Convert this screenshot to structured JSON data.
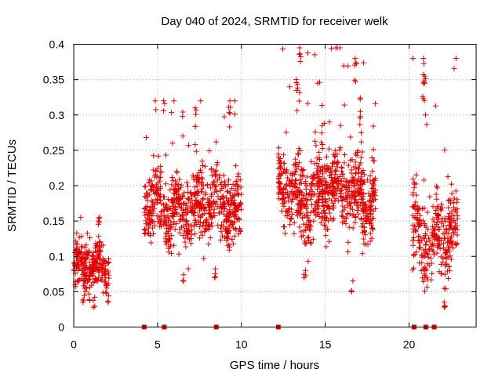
{
  "chart_data": {
    "type": "scatter",
    "title": "Day 040 of 2024, SRMTID for receiver welk",
    "xlabel": "GPS time / hours",
    "ylabel": "SRMTID / TECUs",
    "xlim": [
      0,
      24
    ],
    "ylim": [
      0,
      0.4
    ],
    "xticks": [
      0,
      5,
      10,
      15,
      20
    ],
    "xtick_labels": [
      "0",
      "5",
      "10",
      "15",
      "20"
    ],
    "yticks": [
      0,
      0.05,
      0.1,
      0.15,
      0.2,
      0.25,
      0.3,
      0.35,
      0.4
    ],
    "ytick_labels": [
      "0",
      "0.05",
      "0.1",
      "0.15",
      "0.2",
      "0.25",
      "0.3",
      "0.35",
      "0.4"
    ],
    "grid": true,
    "marker": "plus",
    "color": "#e00000",
    "gap_markers": {
      "description": "zero-value square markers along x axis",
      "x": [
        4.2,
        5.4,
        8.5,
        12.2,
        20.3,
        21.0,
        21.5
      ]
    },
    "series": [
      {
        "name": "SRMTID",
        "clusters": [
          {
            "x_range": [
              0.0,
              2.1
            ],
            "y_mean": 0.08,
            "y_spread": 0.03,
            "y_max": 0.155,
            "count": 260
          },
          {
            "x_range": [
              4.2,
              10.0
            ],
            "y_mean": 0.17,
            "y_spread": 0.045,
            "y_max": 0.32,
            "count": 700
          },
          {
            "x_range": [
              12.2,
              18.0
            ],
            "y_mean": 0.19,
            "y_spread": 0.05,
            "y_max": 0.395,
            "count": 760
          },
          {
            "x_range": [
              20.2,
              22.9
            ],
            "y_mean": 0.13,
            "y_spread": 0.05,
            "y_max": 0.38,
            "count": 300
          }
        ],
        "peaks": [
          {
            "x": 9.3,
            "y": 0.32
          },
          {
            "x": 7.3,
            "y": 0.31
          },
          {
            "x": 13.5,
            "y": 0.395
          },
          {
            "x": 13.3,
            "y": 0.35
          },
          {
            "x": 16.8,
            "y": 0.38
          },
          {
            "x": 20.9,
            "y": 0.38
          },
          {
            "x": 20.95,
            "y": 0.355
          },
          {
            "x": 17.1,
            "y": 0.305
          },
          {
            "x": 14.8,
            "y": 0.285
          },
          {
            "x": 1.5,
            "y": 0.155
          },
          {
            "x": 22.5,
            "y": 0.18
          }
        ],
        "troughs": [
          {
            "x": 0.6,
            "y": 0.035
          },
          {
            "x": 1.2,
            "y": 0.028
          },
          {
            "x": 16.6,
            "y": 0.05
          },
          {
            "x": 22.1,
            "y": 0.028
          },
          {
            "x": 13.8,
            "y": 0.07
          },
          {
            "x": 6.5,
            "y": 0.065
          },
          {
            "x": 8.4,
            "y": 0.07
          }
        ]
      }
    ]
  }
}
